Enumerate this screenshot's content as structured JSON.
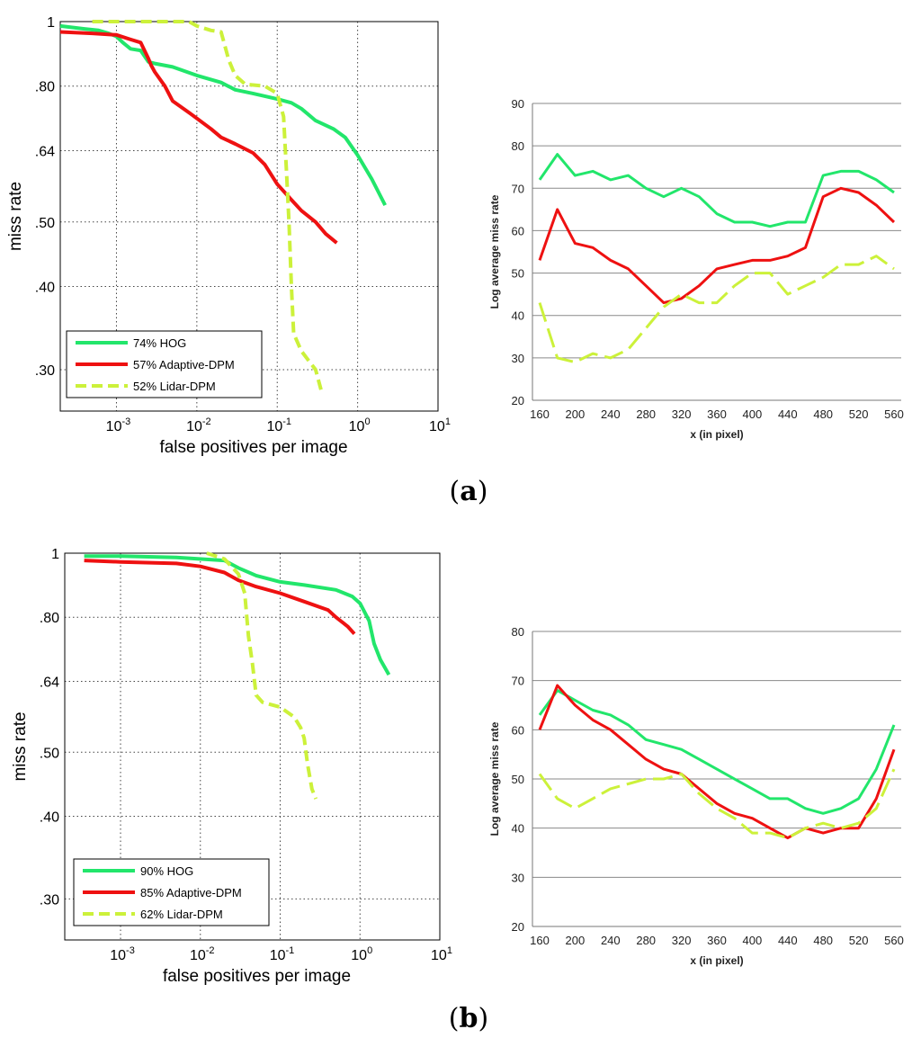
{
  "colors": {
    "hog": "#22e66b",
    "adaptive": "#ee1111",
    "lidar": "#ccf13a"
  },
  "panels": [
    {
      "label_open": "(",
      "label_letter": "a",
      "label_close": ")"
    },
    {
      "label_open": "(",
      "label_letter": "b",
      "label_close": ")"
    }
  ],
  "chart_data": [
    {
      "id": "roc_a",
      "type": "line",
      "xscale": "log",
      "yscale": "log",
      "xlabel": "false positives per image",
      "ylabel": "miss rate",
      "xlim": [
        0.0002,
        10
      ],
      "ylim": [
        0.26,
        1
      ],
      "xticks": [
        {
          "v": 0.001,
          "base": "10",
          "exp": "-3"
        },
        {
          "v": 0.01,
          "base": "10",
          "exp": "-2"
        },
        {
          "v": 0.1,
          "base": "10",
          "exp": "-1"
        },
        {
          "v": 1,
          "base": "10",
          "exp": "0"
        },
        {
          "v": 10,
          "base": "10",
          "exp": "1"
        }
      ],
      "yticks": [
        {
          "v": 1,
          "label": "1"
        },
        {
          "v": 0.8,
          "label": ".80"
        },
        {
          "v": 0.64,
          "label": ".64"
        },
        {
          "v": 0.5,
          "label": ".50"
        },
        {
          "v": 0.4,
          "label": ".40"
        },
        {
          "v": 0.3,
          "label": ".30"
        }
      ],
      "legend": [
        "74% HOG",
        "57% Adaptive-DPM",
        "52% Lidar-DPM"
      ],
      "series": [
        {
          "name": "HOG",
          "color_key": "hog",
          "dash": false,
          "points": [
            [
              0.0002,
              0.985
            ],
            [
              0.0004,
              0.975
            ],
            [
              0.0006,
              0.97
            ],
            [
              0.0008,
              0.96
            ],
            [
              0.001,
              0.95
            ],
            [
              0.0012,
              0.93
            ],
            [
              0.0015,
              0.91
            ],
            [
              0.002,
              0.905
            ],
            [
              0.0025,
              0.87
            ],
            [
              0.003,
              0.865
            ],
            [
              0.005,
              0.855
            ],
            [
              0.01,
              0.83
            ],
            [
              0.02,
              0.81
            ],
            [
              0.03,
              0.79
            ],
            [
              0.05,
              0.78
            ],
            [
              0.1,
              0.765
            ],
            [
              0.15,
              0.755
            ],
            [
              0.2,
              0.74
            ],
            [
              0.3,
              0.71
            ],
            [
              0.5,
              0.69
            ],
            [
              0.7,
              0.67
            ],
            [
              1,
              0.63
            ],
            [
              1.5,
              0.58
            ],
            [
              2.2,
              0.53
            ]
          ]
        },
        {
          "name": "Adaptive-DPM",
          "color_key": "adaptive",
          "dash": false,
          "points": [
            [
              0.0002,
              0.965
            ],
            [
              0.0005,
              0.96
            ],
            [
              0.001,
              0.955
            ],
            [
              0.0015,
              0.94
            ],
            [
              0.002,
              0.93
            ],
            [
              0.0025,
              0.88
            ],
            [
              0.0027,
              0.86
            ],
            [
              0.003,
              0.84
            ],
            [
              0.004,
              0.8
            ],
            [
              0.005,
              0.76
            ],
            [
              0.008,
              0.73
            ],
            [
              0.015,
              0.69
            ],
            [
              0.02,
              0.67
            ],
            [
              0.03,
              0.655
            ],
            [
              0.05,
              0.635
            ],
            [
              0.07,
              0.61
            ],
            [
              0.1,
              0.57
            ],
            [
              0.15,
              0.54
            ],
            [
              0.2,
              0.52
            ],
            [
              0.3,
              0.5
            ],
            [
              0.4,
              0.48
            ],
            [
              0.55,
              0.465
            ]
          ]
        },
        {
          "name": "Lidar-DPM",
          "color_key": "lidar",
          "dash": true,
          "points": [
            [
              0.0005,
              1.0
            ],
            [
              0.008,
              1.0
            ],
            [
              0.01,
              0.985
            ],
            [
              0.015,
              0.97
            ],
            [
              0.02,
              0.965
            ],
            [
              0.025,
              0.875
            ],
            [
              0.03,
              0.83
            ],
            [
              0.04,
              0.805
            ],
            [
              0.07,
              0.8
            ],
            [
              0.1,
              0.78
            ],
            [
              0.12,
              0.72
            ],
            [
              0.13,
              0.6
            ],
            [
              0.14,
              0.5
            ],
            [
              0.15,
              0.4
            ],
            [
              0.16,
              0.34
            ],
            [
              0.2,
              0.32
            ],
            [
              0.3,
              0.3
            ],
            [
              0.35,
              0.28
            ]
          ]
        }
      ]
    },
    {
      "id": "lam_a",
      "type": "line",
      "xlabel": "x (in pixel)",
      "ylabel": "Log average miss rate",
      "ylim": [
        20,
        90
      ],
      "yticks": [
        20,
        30,
        40,
        50,
        60,
        70,
        80,
        90
      ],
      "categories": [
        "160",
        "180",
        "200",
        "220",
        "240",
        "260",
        "280",
        "300",
        "320",
        "340",
        "360",
        "380",
        "400",
        "420",
        "440",
        "460",
        "480",
        "500",
        "520",
        "540",
        "560"
      ],
      "xticklabels": [
        "160",
        "200",
        "240",
        "280",
        "320",
        "360",
        "400",
        "440",
        "480",
        "520",
        "560"
      ],
      "series": [
        {
          "name": "HOG",
          "color_key": "hog",
          "dash": false,
          "values": [
            72,
            78,
            73,
            74,
            72,
            73,
            70,
            68,
            70,
            68,
            64,
            62,
            62,
            61,
            62,
            62,
            73,
            74,
            74,
            72,
            69
          ]
        },
        {
          "name": "Adaptive-DPM",
          "color_key": "adaptive",
          "dash": false,
          "values": [
            53,
            65,
            57,
            56,
            53,
            51,
            47,
            43,
            44,
            47,
            51,
            52,
            53,
            53,
            54,
            56,
            68,
            70,
            69,
            66,
            62
          ]
        },
        {
          "name": "Lidar-DPM",
          "color_key": "lidar",
          "dash": true,
          "values": [
            43,
            30,
            29,
            31,
            30,
            32,
            37,
            42,
            45,
            43,
            43,
            47,
            50,
            50,
            45,
            47,
            49,
            52,
            52,
            54,
            51
          ]
        }
      ]
    },
    {
      "id": "roc_b",
      "type": "line",
      "xscale": "log",
      "yscale": "log",
      "xlabel": "false positives per image",
      "ylabel": "miss rate",
      "xlim": [
        0.0002,
        10
      ],
      "ylim": [
        0.26,
        1
      ],
      "xticks": [
        {
          "v": 0.001,
          "base": "10",
          "exp": "-3"
        },
        {
          "v": 0.01,
          "base": "10",
          "exp": "-2"
        },
        {
          "v": 0.1,
          "base": "10",
          "exp": "-1"
        },
        {
          "v": 1,
          "base": "10",
          "exp": "0"
        },
        {
          "v": 10,
          "base": "10",
          "exp": "1"
        }
      ],
      "yticks": [
        {
          "v": 1,
          "label": "1"
        },
        {
          "v": 0.8,
          "label": ".80"
        },
        {
          "v": 0.64,
          "label": ".64"
        },
        {
          "v": 0.5,
          "label": ".50"
        },
        {
          "v": 0.4,
          "label": ".40"
        },
        {
          "v": 0.3,
          "label": ".30"
        }
      ],
      "legend": [
        "90% HOG",
        "85% Adaptive-DPM",
        "62% Lidar-DPM"
      ],
      "series": [
        {
          "name": "HOG",
          "color_key": "hog",
          "dash": false,
          "points": [
            [
              0.00035,
              0.99
            ],
            [
              0.001,
              0.99
            ],
            [
              0.005,
              0.985
            ],
            [
              0.02,
              0.975
            ],
            [
              0.03,
              0.95
            ],
            [
              0.05,
              0.925
            ],
            [
              0.1,
              0.905
            ],
            [
              0.2,
              0.895
            ],
            [
              0.5,
              0.88
            ],
            [
              0.8,
              0.86
            ],
            [
              1,
              0.84
            ],
            [
              1.3,
              0.79
            ],
            [
              1.5,
              0.73
            ],
            [
              1.8,
              0.69
            ],
            [
              2.3,
              0.655
            ]
          ]
        },
        {
          "name": "Adaptive-DPM",
          "color_key": "adaptive",
          "dash": false,
          "points": [
            [
              0.00035,
              0.975
            ],
            [
              0.001,
              0.97
            ],
            [
              0.005,
              0.965
            ],
            [
              0.01,
              0.955
            ],
            [
              0.02,
              0.935
            ],
            [
              0.03,
              0.91
            ],
            [
              0.05,
              0.89
            ],
            [
              0.1,
              0.87
            ],
            [
              0.2,
              0.845
            ],
            [
              0.4,
              0.82
            ],
            [
              0.5,
              0.8
            ],
            [
              0.7,
              0.775
            ],
            [
              0.85,
              0.755
            ]
          ]
        },
        {
          "name": "Lidar-DPM",
          "color_key": "lidar",
          "dash": true,
          "points": [
            [
              0.012,
              1.0
            ],
            [
              0.02,
              0.98
            ],
            [
              0.03,
              0.93
            ],
            [
              0.036,
              0.87
            ],
            [
              0.04,
              0.75
            ],
            [
              0.045,
              0.68
            ],
            [
              0.05,
              0.61
            ],
            [
              0.06,
              0.595
            ],
            [
              0.1,
              0.585
            ],
            [
              0.15,
              0.565
            ],
            [
              0.18,
              0.545
            ],
            [
              0.2,
              0.525
            ],
            [
              0.22,
              0.48
            ],
            [
              0.25,
              0.44
            ],
            [
              0.28,
              0.425
            ]
          ]
        }
      ]
    },
    {
      "id": "lam_b",
      "type": "line",
      "xlabel": "x (in pixel)",
      "ylabel": "Log average miss rate",
      "ylim": [
        20,
        80
      ],
      "yticks": [
        20,
        30,
        40,
        50,
        60,
        70,
        80
      ],
      "categories": [
        "160",
        "180",
        "200",
        "220",
        "240",
        "260",
        "280",
        "300",
        "320",
        "340",
        "360",
        "380",
        "400",
        "420",
        "440",
        "460",
        "480",
        "500",
        "520",
        "540",
        "560"
      ],
      "xticklabels": [
        "160",
        "200",
        "240",
        "280",
        "320",
        "360",
        "400",
        "440",
        "480",
        "520",
        "560"
      ],
      "series": [
        {
          "name": "HOG",
          "color_key": "hog",
          "dash": false,
          "values": [
            63,
            68,
            66,
            64,
            63,
            61,
            58,
            57,
            56,
            54,
            52,
            50,
            48,
            46,
            46,
            44,
            43,
            44,
            46,
            52,
            61
          ]
        },
        {
          "name": "Adaptive-DPM",
          "color_key": "adaptive",
          "dash": false,
          "values": [
            60,
            69,
            65,
            62,
            60,
            57,
            54,
            52,
            51,
            48,
            45,
            43,
            42,
            40,
            38,
            40,
            39,
            40,
            40,
            46,
            56
          ]
        },
        {
          "name": "Lidar-DPM",
          "color_key": "lidar",
          "dash": true,
          "values": [
            51,
            46,
            44,
            46,
            48,
            49,
            50,
            50,
            51,
            47,
            44,
            42,
            39,
            39,
            38,
            40,
            41,
            40,
            41,
            44,
            52
          ]
        }
      ]
    }
  ]
}
